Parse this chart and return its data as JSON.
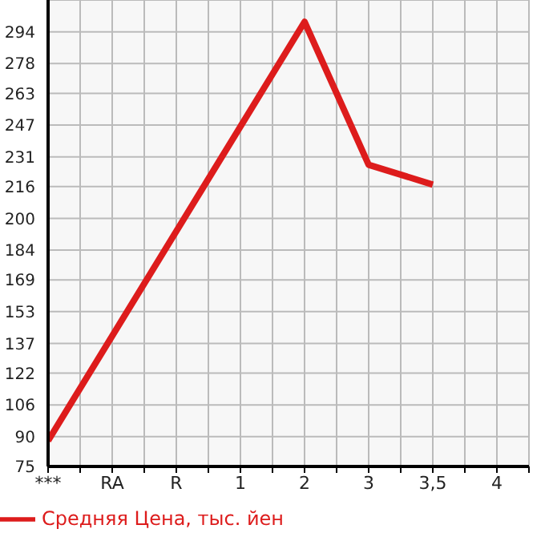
{
  "chart_data": {
    "type": "line",
    "categories": [
      "***",
      "RA",
      "R",
      "1",
      "2",
      "3",
      "3,5",
      "4"
    ],
    "series": [
      {
        "name": "Средняя Цена, тыс. йен",
        "color": "#dd1c1c",
        "values": [
          88,
          null,
          null,
          null,
          299,
          227,
          217,
          null
        ]
      }
    ],
    "ylim": [
      75,
      310
    ],
    "yticks": [
      75,
      90,
      106,
      122,
      137,
      153,
      169,
      184,
      200,
      216,
      231,
      247,
      263,
      278,
      294
    ],
    "grid": true,
    "legend": "bottom",
    "marker": "none",
    "line_style": "solid"
  }
}
